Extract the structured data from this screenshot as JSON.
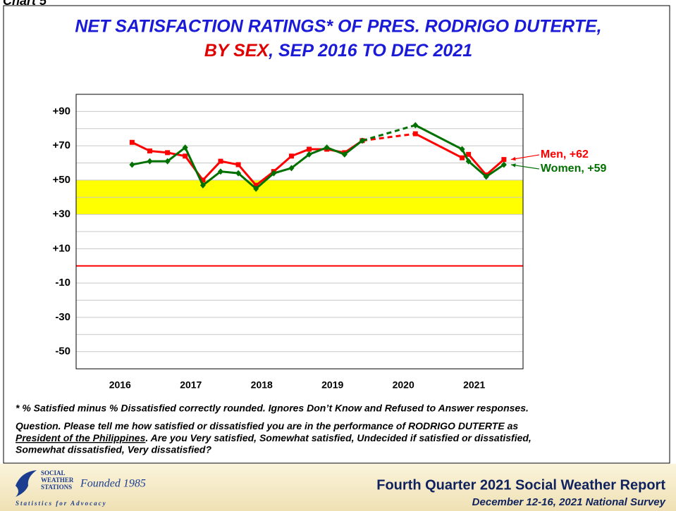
{
  "page_label": "Chart 5",
  "chart_data": {
    "type": "line",
    "title": {
      "line1": "NET SATISFACTION RATINGS* OF PRES. RODRIGO DUTERTE,",
      "line1_color": "#1a1ad8",
      "line2": [
        {
          "text": "BY SEX",
          "color": "#e00000"
        },
        {
          "text": ", SEP 2016 TO DEC 2021",
          "color": "#1a1ad8"
        }
      ]
    },
    "x": [
      2016.67,
      2016.92,
      2017.17,
      2017.42,
      2017.67,
      2017.92,
      2018.17,
      2018.42,
      2018.67,
      2018.92,
      2019.17,
      2019.42,
      2019.67,
      2019.92,
      2020.67,
      2021.33,
      2021.42,
      2021.67,
      2021.92
    ],
    "series": [
      {
        "name": "Men",
        "color": "#ff0000",
        "marker": "square",
        "values": [
          72,
          67,
          66,
          64,
          50,
          61,
          59,
          47,
          55,
          64,
          68,
          68,
          66,
          73,
          77,
          63,
          65,
          53,
          62
        ]
      },
      {
        "name": "Women",
        "color": "#007000",
        "marker": "diamond",
        "values": [
          59,
          61,
          61,
          69,
          47,
          55,
          54,
          45,
          54,
          57,
          65,
          69,
          65,
          73,
          82,
          68,
          61,
          52,
          59
        ]
      }
    ],
    "dashed_segment": [
      13,
      14
    ],
    "annotations": [
      {
        "text": "Men, +62",
        "series": 0
      },
      {
        "text": "Women, +59",
        "series": 1
      }
    ],
    "xlim": [
      2015.88,
      2022.19
    ],
    "xticks": [
      2016,
      2017,
      2018,
      2019,
      2020,
      2021
    ],
    "ylim": [
      -60,
      100
    ],
    "yticks": [
      -50,
      -30,
      -10,
      {
        "value": 10,
        "label": "+10"
      },
      {
        "value": 30,
        "label": "+30"
      },
      {
        "value": 50,
        "label": "+50"
      },
      {
        "value": 70,
        "label": "+70"
      },
      {
        "value": 90,
        "label": "+90"
      }
    ],
    "yminorticks": [
      -40,
      -20,
      20,
      40,
      60,
      80
    ],
    "grid": true,
    "band": {
      "range": [
        30,
        50
      ],
      "color": "#ffff00"
    },
    "zero_line_color": "#ff0000"
  },
  "footnotes": {
    "note": "* % Satisfied minus % Dissatisfied correctly rounded. Ignores Don’t Know and Refused to Answer responses.",
    "question": [
      "Question. Please tell me how satisfied or dissatisfied you are in the performance of RODRIGO DUTERTE as",
      "President of the Philippines",
      ". Are you Very satisfied, Somewhat satisfied, Undecided if satisfied or dissatisfied,",
      "Somewhat dissatisfied, Very dissatisfied?"
    ]
  },
  "footer": {
    "logo": [
      "SOCIAL",
      "WEATHER",
      "STATIONS",
      "Founded 1985",
      "Statistics for Advocacy"
    ],
    "report": "Fourth Quarter 2021 Social Weather Report",
    "survey": "December 12-16, 2021 National Survey"
  }
}
